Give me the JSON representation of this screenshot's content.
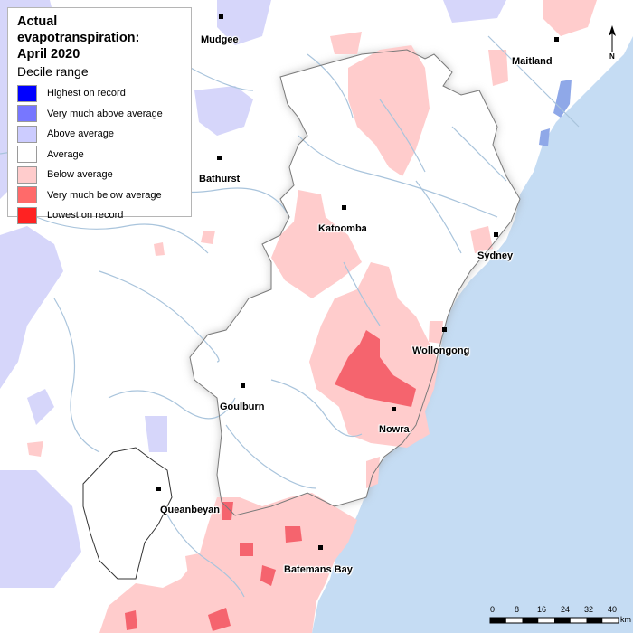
{
  "legend": {
    "title_line1": "Actual evapotranspiration:",
    "title_line2": "April 2020",
    "subtitle": "Decile range",
    "items": [
      {
        "label": "Highest on record",
        "color": "#0000ff"
      },
      {
        "label": "Very much above average",
        "color": "#7777ff"
      },
      {
        "label": "Above average",
        "color": "#ccccff"
      },
      {
        "label": "Average",
        "color": "#ffffff"
      },
      {
        "label": "Below average",
        "color": "#ffcccc"
      },
      {
        "label": "Very much below average",
        "color": "#ff6a6a"
      },
      {
        "label": "Lowest on record",
        "color": "#ff2222"
      }
    ]
  },
  "towns": {
    "mudgee": "Mudgee",
    "maitland": "Maitland",
    "bathurst": "Bathurst",
    "katoomba": "Katoomba",
    "sydney": "Sydney",
    "wollongong": "Wollongong",
    "goulburn": "Goulburn",
    "nowra": "Nowra",
    "queanbeyan": "Queanbeyan",
    "batemans_bay": "Batemans Bay"
  },
  "scale": {
    "ticks": [
      "0",
      "8",
      "16",
      "24",
      "32",
      "40"
    ],
    "unit": "km"
  },
  "north_label": "N",
  "colors": {
    "ocean": "#c5dcf3",
    "river": "#a9c4dc",
    "catchment_border": "#888888"
  }
}
